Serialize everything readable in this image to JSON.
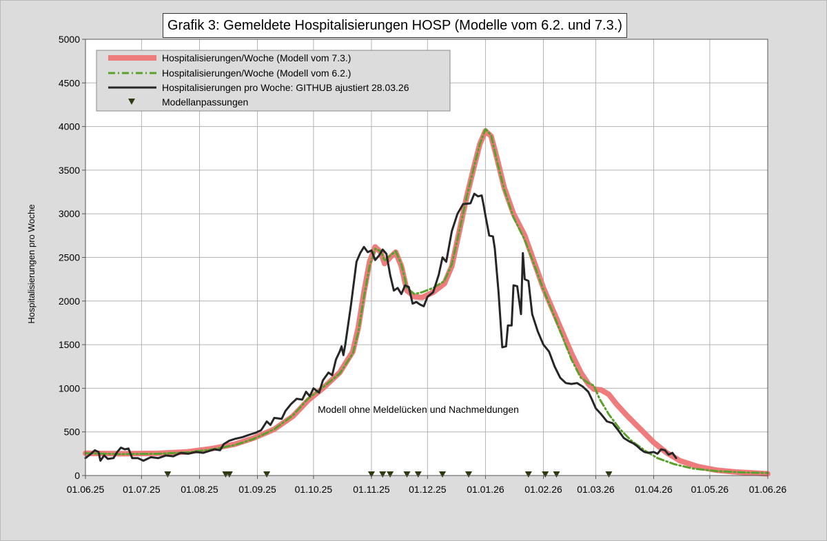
{
  "chart_data": {
    "type": "line",
    "title": "Grafik 3: Gemeldete Hospitalisierungen HOSP (Modelle vom 6.2. und 7.3.)",
    "xlabel": "",
    "ylabel": "Hospitalisierungen pro Woche",
    "ylim": [
      0,
      5000
    ],
    "yticks": [
      "0",
      "500",
      "1000",
      "1500",
      "2000",
      "2500",
      "3000",
      "3500",
      "4000",
      "4500",
      "5000"
    ],
    "xlim": [
      "2025-06-01",
      "2026-06-01"
    ],
    "xticks": [
      {
        "date": "2025-06-01",
        "label": "01.06.25"
      },
      {
        "date": "2025-07-01",
        "label": "01.07.25"
      },
      {
        "date": "2025-08-01",
        "label": "01.08.25"
      },
      {
        "date": "2025-09-01",
        "label": "01.09.25"
      },
      {
        "date": "2025-10-01",
        "label": "01.10.25"
      },
      {
        "date": "2025-11-01",
        "label": "01.11.25"
      },
      {
        "date": "2025-12-01",
        "label": "01.12.25"
      },
      {
        "date": "2026-01-01",
        "label": "01.01.26"
      },
      {
        "date": "2026-02-01",
        "label": "01.02.26"
      },
      {
        "date": "2026-03-01",
        "label": "01.03.26"
      },
      {
        "date": "2026-04-01",
        "label": "01.04.26"
      },
      {
        "date": "2026-05-01",
        "label": "01.05.26"
      },
      {
        "date": "2026-06-01",
        "label": "01.06.26"
      }
    ],
    "grid": true,
    "legend_position": "top-left",
    "annotation": "Modell ohne Meldelücken und Nachmeldungen",
    "series": [
      {
        "name": "Hospitalisierungen/Woche (Modell vom 7.3.)",
        "color": "#ee7c7c",
        "style": "thick",
        "points": [
          [
            "2025-06-01",
            255
          ],
          [
            "2025-06-20",
            250
          ],
          [
            "2025-07-10",
            255
          ],
          [
            "2025-07-25",
            270
          ],
          [
            "2025-08-08",
            310
          ],
          [
            "2025-08-20",
            360
          ],
          [
            "2025-08-30",
            430
          ],
          [
            "2025-09-10",
            530
          ],
          [
            "2025-09-20",
            680
          ],
          [
            "2025-09-28",
            860
          ],
          [
            "2025-10-06",
            1000
          ],
          [
            "2025-10-15",
            1180
          ],
          [
            "2025-10-22",
            1420
          ],
          [
            "2025-10-25",
            1700
          ],
          [
            "2025-10-28",
            2100
          ],
          [
            "2025-10-31",
            2450
          ],
          [
            "2025-11-03",
            2620
          ],
          [
            "2025-11-06",
            2560
          ],
          [
            "2025-11-08",
            2430
          ],
          [
            "2025-11-11",
            2500
          ],
          [
            "2025-11-14",
            2560
          ],
          [
            "2025-11-17",
            2400
          ],
          [
            "2025-11-20",
            2120
          ],
          [
            "2025-11-24",
            2050
          ],
          [
            "2025-11-28",
            2040
          ],
          [
            "2025-12-04",
            2100
          ],
          [
            "2025-12-10",
            2200
          ],
          [
            "2025-12-14",
            2400
          ],
          [
            "2025-12-18",
            2800
          ],
          [
            "2025-12-22",
            3200
          ],
          [
            "2025-12-26",
            3550
          ],
          [
            "2025-12-29",
            3800
          ],
          [
            "2026-01-01",
            3950
          ],
          [
            "2026-01-04",
            3890
          ],
          [
            "2026-01-07",
            3650
          ],
          [
            "2026-01-11",
            3300
          ],
          [
            "2026-01-16",
            3000
          ],
          [
            "2026-01-22",
            2750
          ],
          [
            "2026-01-27",
            2450
          ],
          [
            "2026-02-01",
            2150
          ],
          [
            "2026-02-06",
            1900
          ],
          [
            "2026-02-11",
            1650
          ],
          [
            "2026-02-16",
            1400
          ],
          [
            "2026-02-21",
            1180
          ],
          [
            "2026-02-25",
            1050
          ],
          [
            "2026-02-28",
            990
          ],
          [
            "2026-03-04",
            980
          ],
          [
            "2026-03-08",
            930
          ],
          [
            "2026-03-12",
            820
          ],
          [
            "2026-03-18",
            680
          ],
          [
            "2026-03-25",
            530
          ],
          [
            "2026-04-01",
            380
          ],
          [
            "2026-04-08",
            260
          ],
          [
            "2026-04-15",
            170
          ],
          [
            "2026-04-25",
            100
          ],
          [
            "2026-05-05",
            60
          ],
          [
            "2026-05-15",
            40
          ],
          [
            "2026-06-01",
            20
          ]
        ]
      },
      {
        "name": "Hospitalisierungen/Woche (Modell vom 6.2.)",
        "color": "#5aa02c",
        "style": "dashdot",
        "points": [
          [
            "2025-06-01",
            255
          ],
          [
            "2025-06-20",
            245
          ],
          [
            "2025-07-10",
            250
          ],
          [
            "2025-07-25",
            265
          ],
          [
            "2025-08-08",
            300
          ],
          [
            "2025-08-20",
            350
          ],
          [
            "2025-08-30",
            420
          ],
          [
            "2025-09-10",
            530
          ],
          [
            "2025-09-20",
            690
          ],
          [
            "2025-09-28",
            880
          ],
          [
            "2025-10-06",
            1010
          ],
          [
            "2025-10-15",
            1170
          ],
          [
            "2025-10-22",
            1400
          ],
          [
            "2025-10-25",
            1650
          ],
          [
            "2025-10-28",
            2050
          ],
          [
            "2025-10-31",
            2400
          ],
          [
            "2025-11-03",
            2600
          ],
          [
            "2025-11-06",
            2570
          ],
          [
            "2025-11-08",
            2460
          ],
          [
            "2025-11-11",
            2520
          ],
          [
            "2025-11-14",
            2570
          ],
          [
            "2025-11-17",
            2420
          ],
          [
            "2025-11-20",
            2150
          ],
          [
            "2025-11-24",
            2080
          ],
          [
            "2025-11-28",
            2100
          ],
          [
            "2025-12-04",
            2150
          ],
          [
            "2025-12-10",
            2230
          ],
          [
            "2025-12-14",
            2420
          ],
          [
            "2025-12-18",
            2800
          ],
          [
            "2025-12-22",
            3200
          ],
          [
            "2025-12-26",
            3550
          ],
          [
            "2025-12-29",
            3800
          ],
          [
            "2026-01-01",
            3970
          ],
          [
            "2026-01-04",
            3900
          ],
          [
            "2026-01-07",
            3620
          ],
          [
            "2026-01-11",
            3280
          ],
          [
            "2026-01-16",
            2960
          ],
          [
            "2026-01-22",
            2700
          ],
          [
            "2026-01-27",
            2420
          ],
          [
            "2026-02-01",
            2130
          ],
          [
            "2026-02-06",
            1870
          ],
          [
            "2026-02-11",
            1600
          ],
          [
            "2026-02-16",
            1330
          ],
          [
            "2026-02-21",
            1120
          ],
          [
            "2026-02-25",
            1060
          ],
          [
            "2026-02-28",
            1030
          ],
          [
            "2026-03-03",
            880
          ],
          [
            "2026-03-08",
            700
          ],
          [
            "2026-03-14",
            530
          ],
          [
            "2026-03-20",
            400
          ],
          [
            "2026-03-27",
            290
          ],
          [
            "2026-04-03",
            200
          ],
          [
            "2026-04-12",
            130
          ],
          [
            "2026-04-22",
            80
          ],
          [
            "2026-05-05",
            50
          ],
          [
            "2026-05-20",
            35
          ],
          [
            "2026-06-01",
            30
          ]
        ]
      },
      {
        "name": "Hospitalisierungen pro Woche: GITHUB ajustiert  28.03.26",
        "color": "#262626",
        "style": "solid",
        "points": [
          [
            "2025-06-01",
            200
          ],
          [
            "2025-06-04",
            250
          ],
          [
            "2025-06-06",
            290
          ],
          [
            "2025-06-08",
            270
          ],
          [
            "2025-06-09",
            170
          ],
          [
            "2025-06-11",
            230
          ],
          [
            "2025-06-13",
            190
          ],
          [
            "2025-06-16",
            200
          ],
          [
            "2025-06-18",
            270
          ],
          [
            "2025-06-20",
            320
          ],
          [
            "2025-06-22",
            300
          ],
          [
            "2025-06-24",
            310
          ],
          [
            "2025-06-26",
            200
          ],
          [
            "2025-06-29",
            200
          ],
          [
            "2025-07-02",
            170
          ],
          [
            "2025-07-06",
            210
          ],
          [
            "2025-07-10",
            200
          ],
          [
            "2025-07-14",
            230
          ],
          [
            "2025-07-18",
            220
          ],
          [
            "2025-07-22",
            260
          ],
          [
            "2025-07-26",
            250
          ],
          [
            "2025-07-30",
            270
          ],
          [
            "2025-08-03",
            260
          ],
          [
            "2025-08-06",
            280
          ],
          [
            "2025-08-09",
            300
          ],
          [
            "2025-08-12",
            290
          ],
          [
            "2025-08-14",
            360
          ],
          [
            "2025-08-17",
            400
          ],
          [
            "2025-08-20",
            420
          ],
          [
            "2025-08-24",
            440
          ],
          [
            "2025-08-28",
            470
          ],
          [
            "2025-08-31",
            490
          ],
          [
            "2025-09-03",
            520
          ],
          [
            "2025-09-06",
            620
          ],
          [
            "2025-09-08",
            580
          ],
          [
            "2025-09-10",
            660
          ],
          [
            "2025-09-14",
            650
          ],
          [
            "2025-09-16",
            740
          ],
          [
            "2025-09-19",
            820
          ],
          [
            "2025-09-22",
            880
          ],
          [
            "2025-09-25",
            870
          ],
          [
            "2025-09-27",
            960
          ],
          [
            "2025-09-29",
            910
          ],
          [
            "2025-10-01",
            1000
          ],
          [
            "2025-10-04",
            950
          ],
          [
            "2025-10-06",
            1090
          ],
          [
            "2025-10-09",
            1180
          ],
          [
            "2025-10-11",
            1150
          ],
          [
            "2025-10-13",
            1330
          ],
          [
            "2025-10-15",
            1420
          ],
          [
            "2025-10-16",
            1480
          ],
          [
            "2025-10-17",
            1380
          ],
          [
            "2025-10-18",
            1500
          ],
          [
            "2025-10-21",
            1950
          ],
          [
            "2025-10-24",
            2450
          ],
          [
            "2025-10-26",
            2550
          ],
          [
            "2025-10-28",
            2620
          ],
          [
            "2025-10-30",
            2560
          ],
          [
            "2025-11-01",
            2580
          ],
          [
            "2025-11-03",
            2470
          ],
          [
            "2025-11-05",
            2520
          ],
          [
            "2025-11-07",
            2590
          ],
          [
            "2025-11-09",
            2540
          ],
          [
            "2025-11-11",
            2300
          ],
          [
            "2025-11-13",
            2120
          ],
          [
            "2025-11-15",
            2150
          ],
          [
            "2025-11-17",
            2080
          ],
          [
            "2025-11-19",
            2180
          ],
          [
            "2025-11-21",
            2160
          ],
          [
            "2025-11-23",
            1970
          ],
          [
            "2025-11-25",
            1990
          ],
          [
            "2025-11-27",
            1960
          ],
          [
            "2025-11-29",
            1940
          ],
          [
            "2025-12-01",
            2050
          ],
          [
            "2025-12-04",
            2100
          ],
          [
            "2025-12-07",
            2300
          ],
          [
            "2025-12-09",
            2500
          ],
          [
            "2025-12-11",
            2450
          ],
          [
            "2025-12-14",
            2800
          ],
          [
            "2025-12-17",
            3000
          ],
          [
            "2025-12-20",
            3110
          ],
          [
            "2025-12-24",
            3120
          ],
          [
            "2025-12-26",
            3230
          ],
          [
            "2025-12-28",
            3200
          ],
          [
            "2025-12-30",
            3210
          ],
          [
            "2025-12-31",
            3100
          ],
          [
            "2026-01-01",
            2980
          ],
          [
            "2026-01-03",
            2750
          ],
          [
            "2026-01-05",
            2740
          ],
          [
            "2026-01-06",
            2600
          ],
          [
            "2026-01-08",
            2100
          ],
          [
            "2026-01-10",
            1470
          ],
          [
            "2026-01-12",
            1480
          ],
          [
            "2026-01-13",
            1720
          ],
          [
            "2026-01-15",
            1720
          ],
          [
            "2026-01-16",
            2180
          ],
          [
            "2026-01-18",
            2170
          ],
          [
            "2026-01-20",
            1850
          ],
          [
            "2026-01-21",
            2550
          ],
          [
            "2026-01-22",
            2250
          ],
          [
            "2026-01-24",
            2230
          ],
          [
            "2026-01-26",
            1850
          ],
          [
            "2026-01-29",
            1650
          ],
          [
            "2026-02-01",
            1500
          ],
          [
            "2026-02-04",
            1420
          ],
          [
            "2026-02-07",
            1250
          ],
          [
            "2026-02-10",
            1120
          ],
          [
            "2026-02-13",
            1060
          ],
          [
            "2026-02-16",
            1050
          ],
          [
            "2026-02-19",
            1060
          ],
          [
            "2026-02-22",
            1020
          ],
          [
            "2026-02-25",
            960
          ],
          [
            "2026-02-27",
            870
          ],
          [
            "2026-03-01",
            770
          ],
          [
            "2026-03-04",
            700
          ],
          [
            "2026-03-07",
            620
          ],
          [
            "2026-03-10",
            600
          ],
          [
            "2026-03-13",
            520
          ],
          [
            "2026-03-16",
            430
          ],
          [
            "2026-03-19",
            390
          ],
          [
            "2026-03-21",
            370
          ],
          [
            "2026-03-23",
            340
          ],
          [
            "2026-03-25",
            300
          ],
          [
            "2026-03-27",
            270
          ],
          [
            "2026-03-29",
            260
          ],
          [
            "2026-04-01",
            270
          ],
          [
            "2026-04-03",
            250
          ],
          [
            "2026-04-05",
            300
          ],
          [
            "2026-04-07",
            290
          ],
          [
            "2026-04-09",
            240
          ],
          [
            "2026-04-11",
            260
          ],
          [
            "2026-04-13",
            200
          ]
        ]
      }
    ],
    "markers": {
      "name": "Modellanpassungen",
      "color": "#2e3b0f",
      "dates": [
        "2025-07-15",
        "2025-08-15",
        "2025-08-17",
        "2025-09-06",
        "2025-11-01",
        "2025-11-07",
        "2025-11-11",
        "2025-11-20",
        "2025-11-26",
        "2025-12-09",
        "2025-12-23",
        "2026-01-24",
        "2026-02-02",
        "2026-02-08",
        "2026-03-08"
      ],
      "value": 0
    }
  }
}
